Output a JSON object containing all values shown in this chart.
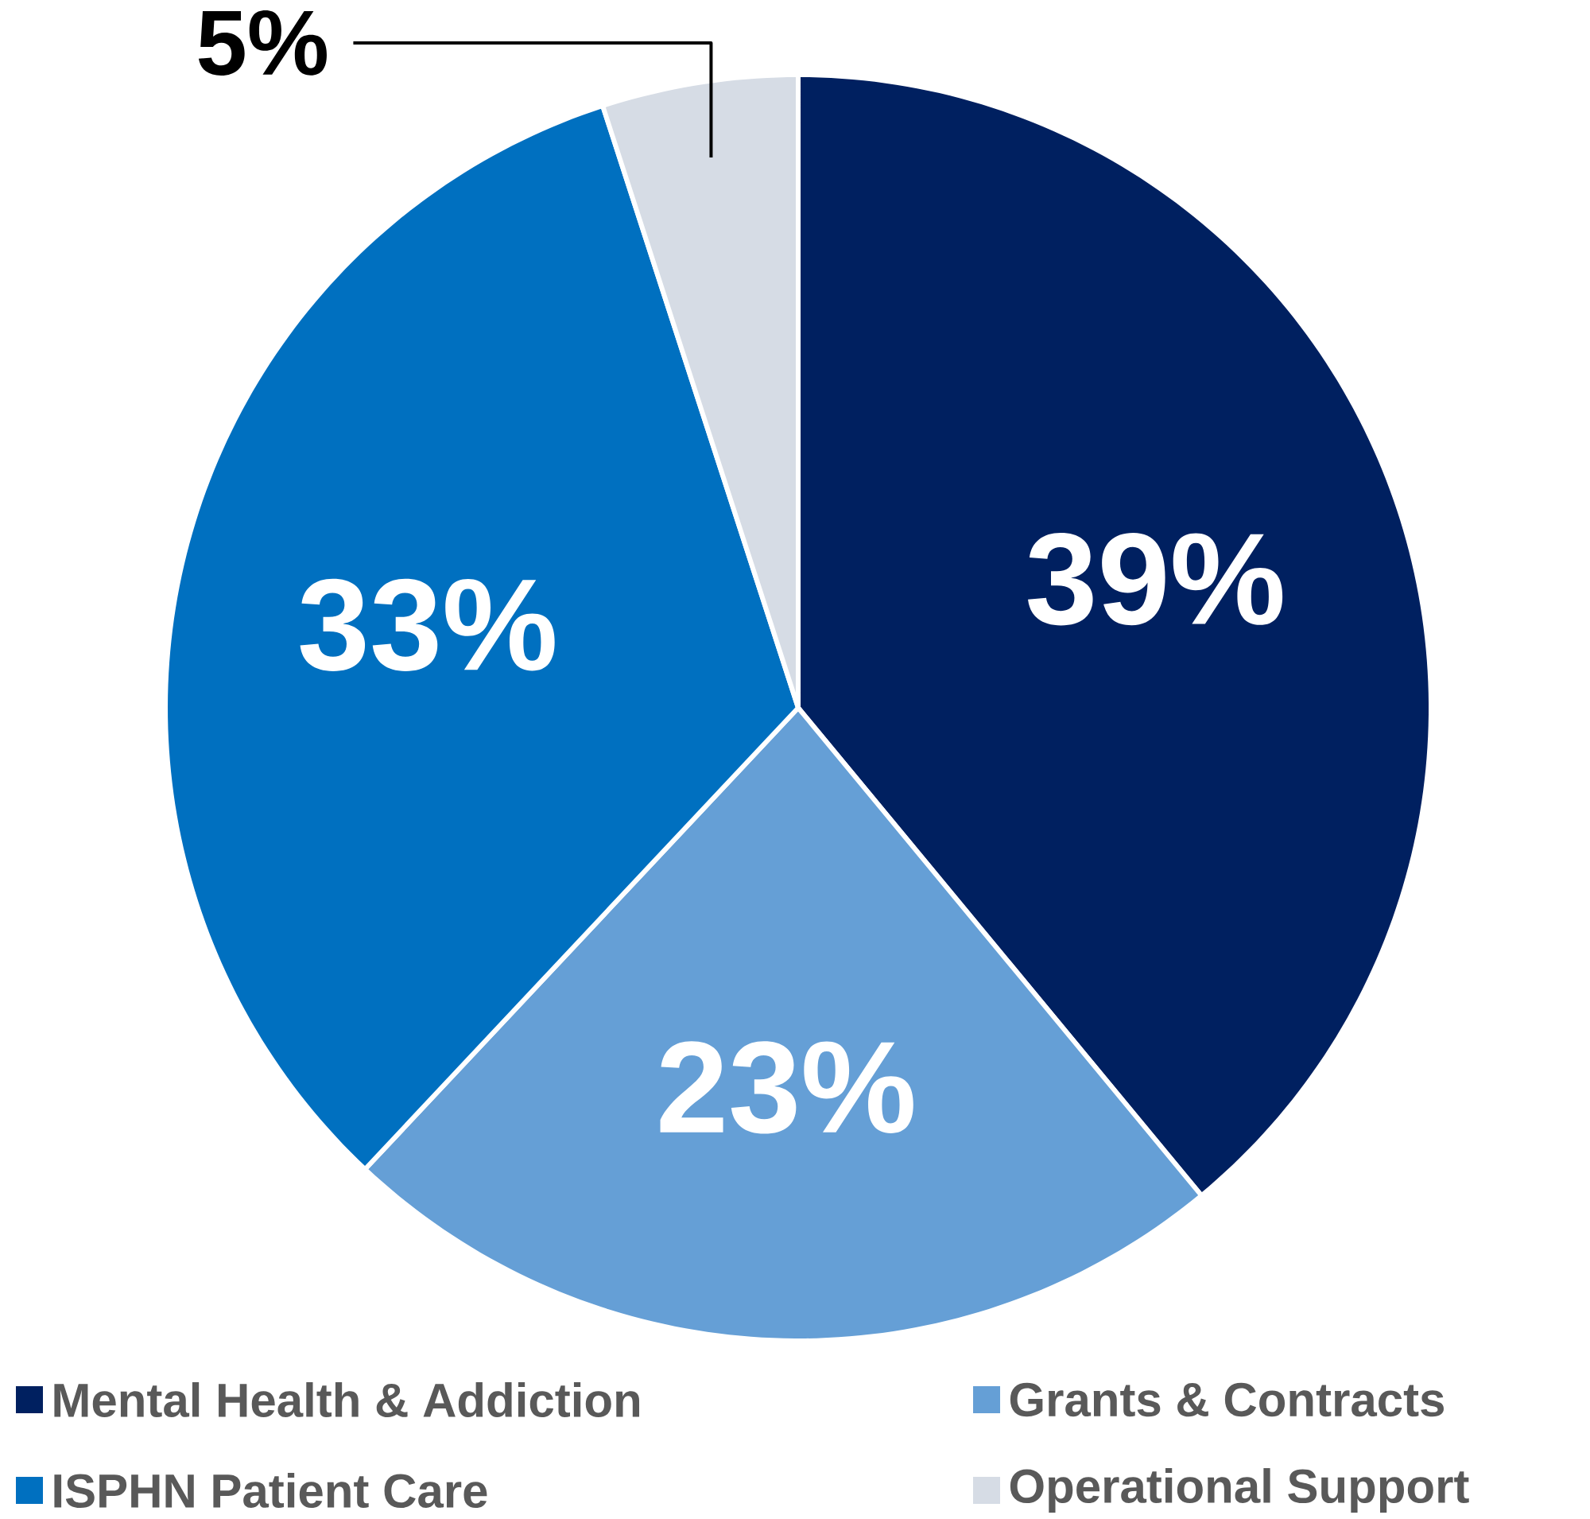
{
  "chart_data": {
    "type": "pie",
    "categories": [
      "Mental Health & Addiction",
      "Grants & Contracts",
      "ISPHN Patient Care",
      "Operational Support"
    ],
    "values": [
      39,
      23,
      33,
      5
    ],
    "colors": [
      "#002060",
      "#659FD6",
      "#0070C0",
      "#D6DCE5"
    ],
    "value_labels": [
      "39%",
      "23%",
      "33%",
      "5%"
    ],
    "legend": "bottom"
  }
}
